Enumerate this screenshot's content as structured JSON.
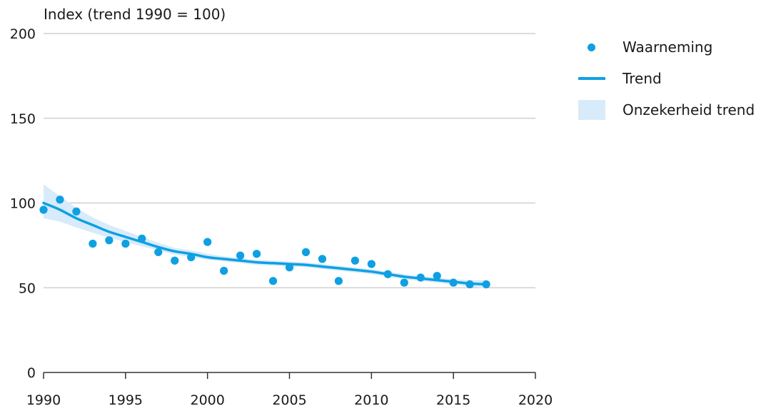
{
  "chart_data": {
    "type": "scatter",
    "ylabel": "Index (trend 1990 = 100)",
    "xlabel": "",
    "xlim": [
      1990,
      2020
    ],
    "ylim": [
      0,
      200
    ],
    "xticks": [
      "1990",
      "1995",
      "2000",
      "2005",
      "2010",
      "2015",
      "2020"
    ],
    "yticks": [
      "0",
      "50",
      "100",
      "150",
      "200"
    ],
    "grid": "horizontal",
    "legend_position": "top-right",
    "colors": {
      "points": "#0ea0e3",
      "trend": "#0ea0e3",
      "band": "#d7ebfa",
      "grid": "#c8c8c8",
      "axis": "#333333"
    },
    "series": [
      {
        "name": "Waarneming",
        "kind": "points",
        "x": [
          1990,
          1991,
          1992,
          1993,
          1994,
          1995,
          1996,
          1997,
          1998,
          1999,
          2000,
          2001,
          2002,
          2003,
          2004,
          2005,
          2006,
          2007,
          2008,
          2009,
          2010,
          2011,
          2012,
          2013,
          2014,
          2015,
          2016,
          2017
        ],
        "y": [
          96,
          102,
          95,
          76,
          78,
          76,
          79,
          71,
          66,
          68,
          77,
          60,
          69,
          70,
          54,
          62,
          71,
          67,
          54,
          66,
          64,
          58,
          53,
          56,
          57,
          53,
          52,
          52
        ]
      },
      {
        "name": "Trend",
        "kind": "line",
        "x": [
          1990,
          1991,
          1992,
          1993,
          1994,
          1995,
          1996,
          1997,
          1998,
          1999,
          2000,
          2001,
          2002,
          2003,
          2004,
          2005,
          2006,
          2007,
          2008,
          2009,
          2010,
          2011,
          2012,
          2013,
          2014,
          2015,
          2016,
          2017
        ],
        "y": [
          100,
          96,
          91,
          87,
          83,
          80,
          77,
          74,
          71.5,
          70,
          68,
          67,
          66,
          65,
          64.5,
          64,
          63.5,
          62.5,
          61.5,
          60.5,
          59.5,
          58,
          56.5,
          55.5,
          54.5,
          53.5,
          52.5,
          52
        ]
      },
      {
        "name": "Onzekerheid trend",
        "kind": "band",
        "x": [
          1990,
          1991,
          1992,
          1993,
          1994,
          1995,
          1996,
          1997,
          1998,
          1999,
          2000,
          2001,
          2002,
          2003,
          2004,
          2005,
          2006,
          2007,
          2008,
          2009,
          2010,
          2011,
          2012,
          2013,
          2014,
          2015,
          2016,
          2017
        ],
        "lower": [
          91,
          89,
          85.5,
          82.5,
          79.5,
          77,
          74.5,
          72,
          69.5,
          68,
          66.5,
          65.5,
          64.5,
          63.5,
          63,
          62.5,
          62,
          61,
          60,
          59,
          58,
          56.5,
          55,
          54,
          53,
          52,
          50.5,
          49.5
        ],
        "upper": [
          111,
          104,
          97,
          91.5,
          87,
          83.5,
          80,
          76.5,
          73.5,
          72,
          70,
          68.5,
          67.5,
          66.5,
          66,
          65.5,
          65,
          64,
          63,
          62,
          61,
          59.5,
          58,
          57,
          56,
          55,
          54.5,
          54.5
        ]
      }
    ]
  }
}
